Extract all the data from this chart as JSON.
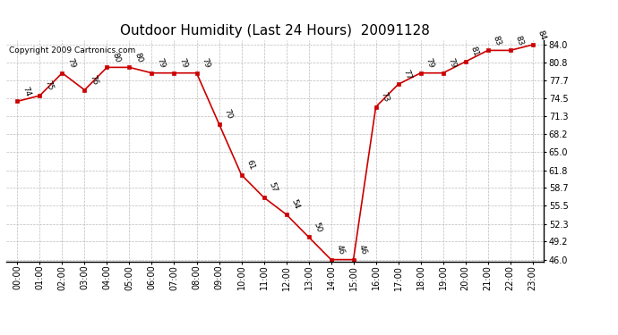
{
  "title": "Outdoor Humidity (Last 24 Hours)  20091128",
  "copyright": "Copyright 2009 Cartronics.com",
  "hours": [
    "00:00",
    "01:00",
    "02:00",
    "03:00",
    "04:00",
    "05:00",
    "06:00",
    "07:00",
    "08:00",
    "09:00",
    "10:00",
    "11:00",
    "12:00",
    "13:00",
    "14:00",
    "15:00",
    "16:00",
    "17:00",
    "18:00",
    "19:00",
    "20:00",
    "21:00",
    "22:00",
    "23:00"
  ],
  "x_indices": [
    0,
    1,
    2,
    3,
    4,
    5,
    6,
    7,
    8,
    9,
    10,
    11,
    12,
    13,
    14,
    15,
    16,
    17,
    18,
    19,
    20,
    21,
    22,
    23
  ],
  "values": [
    74,
    75,
    79,
    76,
    80,
    80,
    79,
    79,
    79,
    70,
    61,
    57,
    54,
    50,
    46,
    46,
    73,
    77,
    79,
    79,
    81,
    83,
    83,
    84
  ],
  "line_color": "#cc0000",
  "marker_color": "#cc0000",
  "bg_color": "#ffffff",
  "grid_color": "#bbbbbb",
  "title_fontsize": 11,
  "annotation_fontsize": 6.5,
  "copyright_fontsize": 6.5,
  "tick_fontsize": 7,
  "y_min": 46.0,
  "y_max": 84.0,
  "y_ticks": [
    46.0,
    49.2,
    52.3,
    55.5,
    58.7,
    61.8,
    65.0,
    68.2,
    71.3,
    74.5,
    77.7,
    80.8,
    84.0
  ]
}
